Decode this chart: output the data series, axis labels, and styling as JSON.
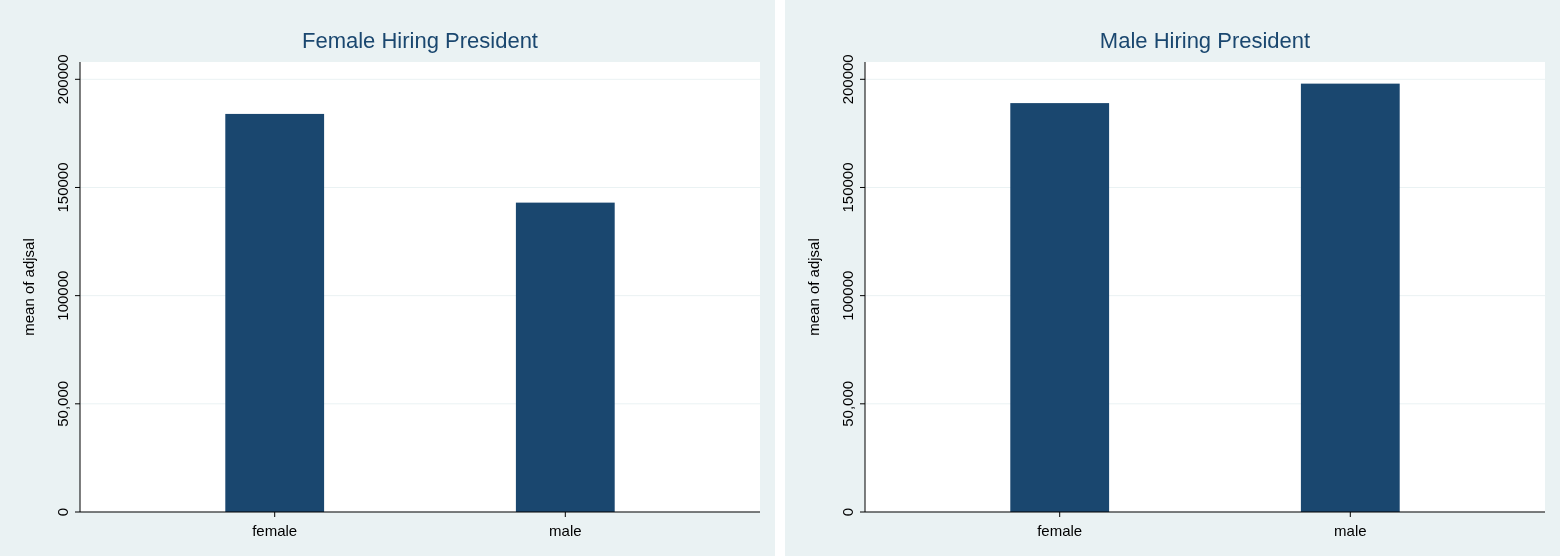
{
  "chart_data": [
    {
      "type": "bar",
      "title": "Female Hiring President",
      "ylabel": "mean of adjsal",
      "categories": [
        "female",
        "male"
      ],
      "values": [
        184000,
        143000
      ],
      "color": "#1a476f",
      "ylim": [
        0,
        208000
      ],
      "yticks": [
        0,
        {
          "value": 50000,
          "label": "50,000"
        },
        100000,
        150000,
        200000
      ],
      "grid": "y"
    },
    {
      "type": "bar",
      "title": "Male Hiring President",
      "ylabel": "mean of adjsal",
      "categories": [
        "female",
        "male"
      ],
      "values": [
        189000,
        198000
      ],
      "color": "#1a476f",
      "ylim": [
        0,
        208000
      ],
      "yticks": [
        0,
        {
          "value": 50000,
          "label": "50,000"
        },
        100000,
        150000,
        200000
      ],
      "grid": "y"
    }
  ]
}
